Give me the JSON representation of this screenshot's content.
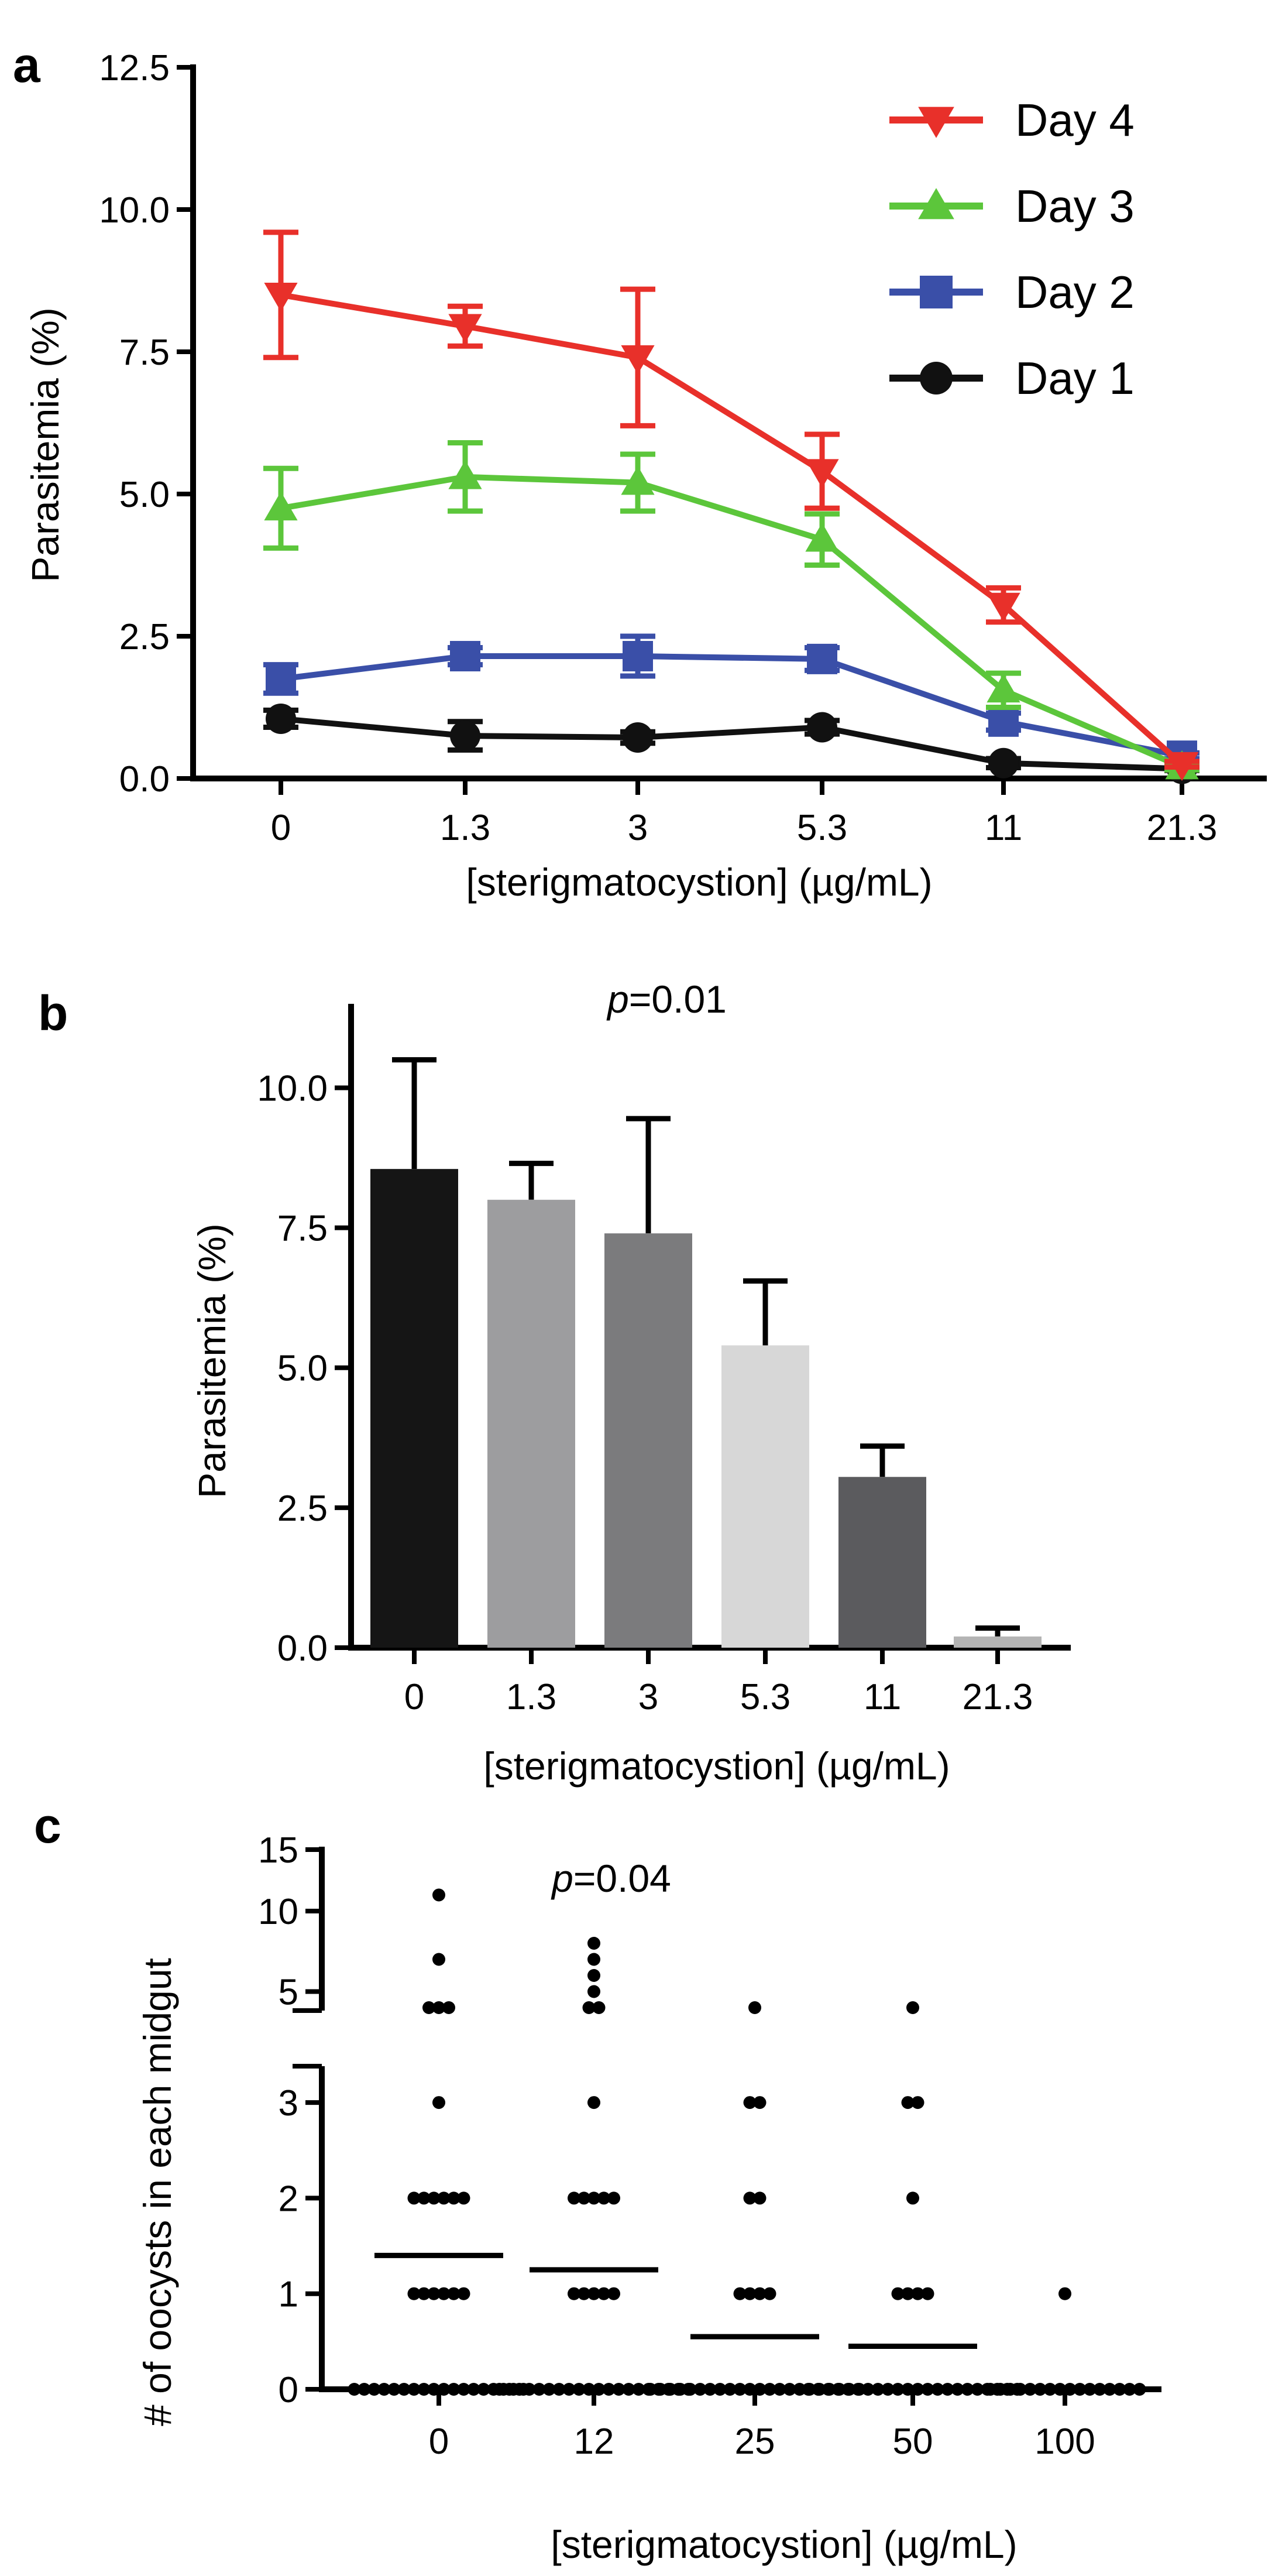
{
  "panel_letters": {
    "a": "a",
    "b": "b",
    "c": "c"
  },
  "chart_data": [
    {
      "id": "a",
      "type": "line",
      "title": "",
      "xlabel": "[sterigmatocystion] (µg/mL)",
      "ylabel": "Parasitemia (%)",
      "categories": [
        "0",
        "1.3",
        "3",
        "5.3",
        "11",
        "21.3"
      ],
      "ylim": [
        0,
        12.5
      ],
      "yticks": [
        0.0,
        2.5,
        5.0,
        7.5,
        10.0,
        12.5
      ],
      "ytick_labels": [
        "0.0",
        "2.5",
        "5.0",
        "7.5",
        "10.0",
        "12.5"
      ],
      "legend_position": "top-right",
      "series": [
        {
          "name": "Day 4",
          "color": "#e8302a",
          "marker": "triangle-down",
          "values": [
            8.5,
            7.95,
            7.4,
            5.4,
            3.05,
            0.25
          ],
          "errors": [
            1.1,
            0.35,
            1.2,
            0.65,
            0.3,
            0.05
          ]
        },
        {
          "name": "Day 3",
          "color": "#5cc63b",
          "marker": "triangle-up",
          "values": [
            4.75,
            5.3,
            5.2,
            4.2,
            1.55,
            0.2
          ],
          "errors": [
            0.7,
            0.6,
            0.5,
            0.45,
            0.3,
            0.05
          ]
        },
        {
          "name": "Day 2",
          "color": "#3a4fa8",
          "marker": "square",
          "values": [
            1.75,
            2.15,
            2.15,
            2.1,
            1.0,
            0.4
          ],
          "errors": [
            0.25,
            0.15,
            0.35,
            0.2,
            0.15,
            0.05
          ]
        },
        {
          "name": "Day 1",
          "color": "#111111",
          "marker": "circle",
          "values": [
            1.05,
            0.75,
            0.72,
            0.9,
            0.27,
            0.17
          ],
          "errors": [
            0.15,
            0.25,
            0.1,
            0.12,
            0.08,
            0.03
          ]
        }
      ]
    },
    {
      "id": "b",
      "type": "bar",
      "title": "p=0.01",
      "title_p": "p",
      "title_rest": "=0.01",
      "xlabel": "[sterigmatocystion] (µg/mL)",
      "ylabel": "Parasitemia (%)",
      "categories": [
        "0",
        "1.3",
        "3",
        "5.3",
        "11",
        "21.3"
      ],
      "values": [
        8.55,
        8.0,
        7.4,
        5.4,
        3.05,
        0.2
      ],
      "errors": [
        1.95,
        0.65,
        2.05,
        1.15,
        0.55,
        0.15
      ],
      "bar_colors": [
        "#151515",
        "#9d9d9f",
        "#7b7b7d",
        "#d7d7d7",
        "#5b5b5e",
        "#b4b4b4"
      ],
      "ylim": [
        0,
        11.5
      ],
      "yticks": [
        0.0,
        2.5,
        5.0,
        7.5,
        10.0
      ],
      "ytick_labels": [
        "0.0",
        "2.5",
        "5.0",
        "7.5",
        "10.0"
      ]
    },
    {
      "id": "c",
      "type": "scatter",
      "title": "p=0.04",
      "title_p": "p",
      "title_rest": "=0.04",
      "xlabel": "[sterigmatocystion] (µg/mL)",
      "ylabel": "# of oocysts in each midgut",
      "categories": [
        "0",
        "12",
        "25",
        "50",
        "100"
      ],
      "yticks": [
        0,
        1,
        2,
        3,
        5,
        10,
        15
      ],
      "ytick_labels": [
        "0",
        "1",
        "2",
        "3",
        "5",
        "10",
        "15"
      ],
      "axis_break": [
        3.5,
        4.5
      ],
      "means": [
        1.4,
        1.25,
        0.55,
        0.45,
        0.0
      ],
      "counts": [
        {
          "0": 18,
          "1": 6,
          "2": 6,
          "3": 1,
          "4": 3,
          "7": 1,
          "11": 1
        },
        {
          "0": 20,
          "1": 5,
          "2": 5,
          "3": 1,
          "4": 2,
          "5": 1,
          "6": 1,
          "7": 1,
          "8": 1
        },
        {
          "0": 22,
          "1": 4,
          "2": 2,
          "3": 2,
          "4": 1
        },
        {
          "0": 22,
          "1": 4,
          "2": 1,
          "3": 2,
          "4": 1
        },
        {
          "0": 16,
          "1": 1
        }
      ]
    }
  ]
}
